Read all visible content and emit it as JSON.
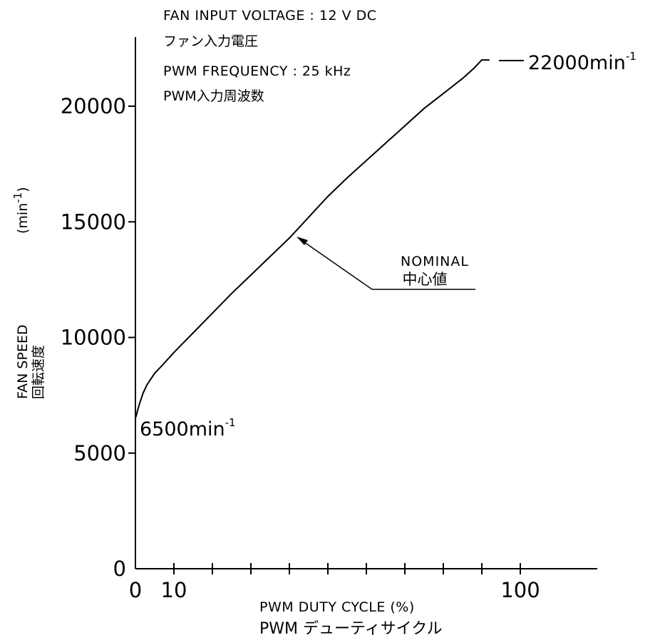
{
  "notes": {
    "voltage_en": "FAN INPUT VOLTAGE : 12 V DC",
    "voltage_ja": "ファン入力電圧",
    "freq_en": "PWM FREQUENCY : 25 kHz",
    "freq_ja": "PWM入力周波数"
  },
  "chart_data": {
    "type": "line",
    "title": "",
    "xlabel_en": "PWM DUTY CYCLE (%)",
    "xlabel_ja": "PWM デューティサイクル",
    "ylabel_en": "FAN SPEED",
    "ylabel_ja": "回転速度",
    "yunit": "(min",
    "yunit_sup": "-1",
    "yunit_close": ")",
    "xlim": [
      0,
      120
    ],
    "ylim": [
      0,
      22000
    ],
    "x_tick_labels": [
      {
        "value": 0,
        "label": "0"
      },
      {
        "value": 10,
        "label": "10"
      },
      {
        "value": 100,
        "label": "100"
      }
    ],
    "x_minor_ticks": [
      20,
      30,
      40,
      50,
      60,
      70,
      80,
      90
    ],
    "y_tick_labels": [
      {
        "value": 0,
        "label": "0"
      },
      {
        "value": 5000,
        "label": "5000"
      },
      {
        "value": 10000,
        "label": "10000"
      },
      {
        "value": 15000,
        "label": "15000"
      },
      {
        "value": 20000,
        "label": "20000"
      }
    ],
    "grid": false,
    "series": [
      {
        "x": [
          0,
          1,
          2,
          3,
          5,
          7,
          10,
          15,
          20,
          25,
          30,
          35,
          40,
          45,
          50,
          55,
          60,
          65,
          70,
          75,
          80,
          85,
          88,
          90,
          92
        ],
        "y": [
          6500,
          7100,
          7600,
          7950,
          8450,
          8800,
          9350,
          10200,
          11050,
          11900,
          12700,
          13500,
          14300,
          15200,
          16100,
          16900,
          17650,
          18400,
          19150,
          19900,
          20550,
          21200,
          21650,
          22000,
          22000
        ]
      }
    ],
    "annotations": {
      "start_label": "6500min",
      "start_sup": "-1",
      "end_label": "22000min",
      "end_sup": "-1",
      "nominal_en": "NOMINAL",
      "nominal_ja": "中心値"
    }
  }
}
